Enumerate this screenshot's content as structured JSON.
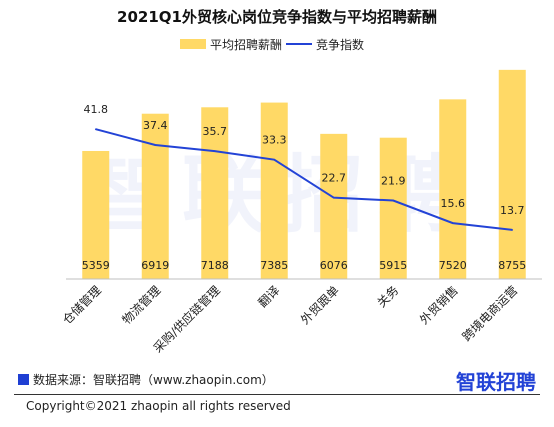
{
  "colors": {
    "bar": "#ffd966",
    "line": "#2343d6",
    "brand": "#2343d6",
    "source_square": "#1f3fd3"
  },
  "watermark": "智联招聘",
  "chart_data": {
    "type": "bar",
    "title": "2021Q1外贸核心岗位竞争指数与平均招聘薪酬",
    "categories": [
      "仓储管理",
      "物流管理",
      "采购/供应链管理",
      "翻译",
      "外贸跟单",
      "关务",
      "外贸销售",
      "跨境电商运营"
    ],
    "series": [
      {
        "name": "平均招聘薪酬",
        "type": "bar",
        "values": [
          5359,
          6919,
          7188,
          7385,
          6076,
          5915,
          7520,
          8755
        ]
      },
      {
        "name": "竞争指数",
        "type": "line",
        "values": [
          41.8,
          37.4,
          35.7,
          33.3,
          22.7,
          21.9,
          15.6,
          13.7
        ]
      }
    ],
    "bar_ylim": [
      0,
      9000
    ],
    "line_ylim": [
      0,
      60
    ],
    "legend_position": "top",
    "grid": false
  },
  "footer": {
    "source": "数据来源：智联招聘（www.zhaopin.com）",
    "brand": "智联招聘",
    "copyright": "Copyright©2021 zhaopin all rights reserved"
  }
}
